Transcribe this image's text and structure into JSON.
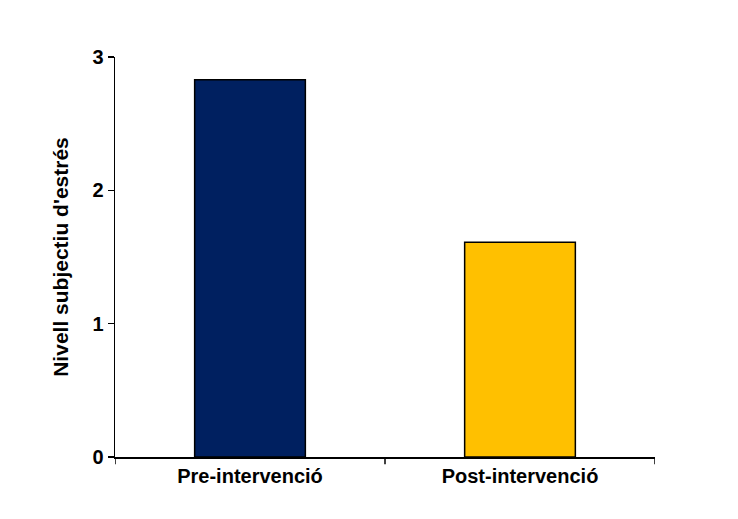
{
  "chart_data": {
    "type": "bar",
    "y_label": "Nivell subjectiu d'estrés",
    "categories": [
      "Pre-intervenció",
      "Post-intervenció"
    ],
    "values": [
      2.83,
      1.61
    ],
    "colors": [
      "#002060",
      "#FFC000"
    ],
    "ylim": [
      0,
      3
    ],
    "yticks": [
      0,
      1,
      2,
      3
    ],
    "grid": false
  }
}
